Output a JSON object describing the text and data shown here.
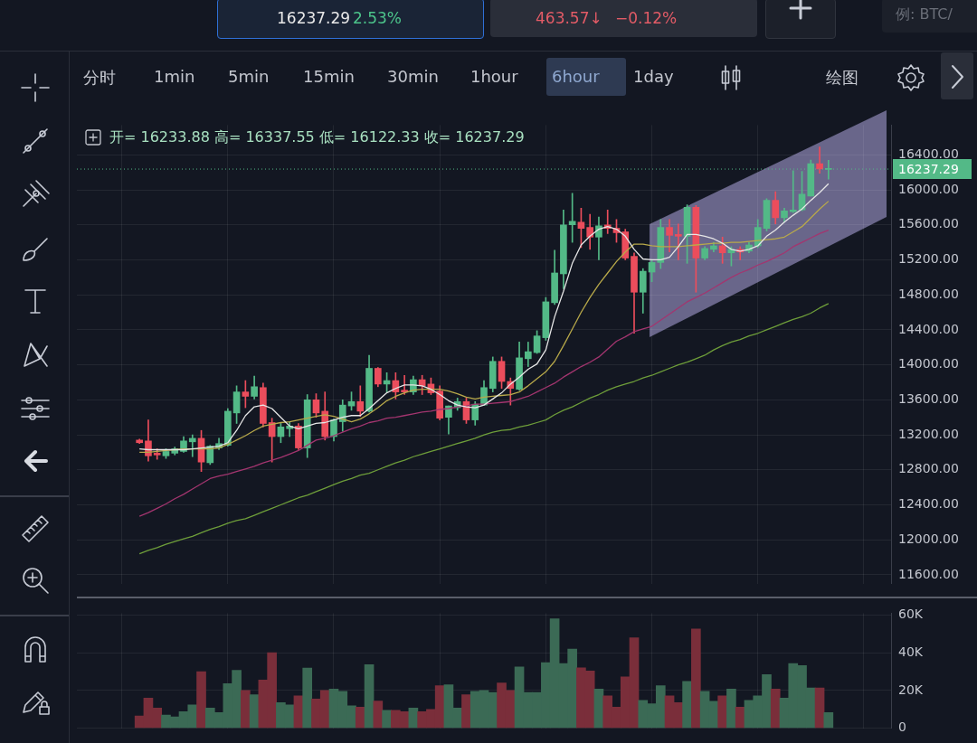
{
  "chart_data": [
    {
      "type": "other",
      "annotations": [
        "16237.29",
        "2.53%",
        "463.57↓",
        "−0.12%",
        "例: BTC/",
        "分时",
        "1min",
        "5min",
        "15min",
        "30min",
        "1hour",
        "6hour",
        "1day",
        "绘图"
      ]
    },
    {
      "type": "candlestick",
      "annotations": [
        "开= 16233.88 高= 16337.55 低= 16122.33 收= 16237.29"
      ],
      "categories": [
        null,
        null,
        null,
        null,
        null,
        null,
        null,
        null,
        null,
        null,
        null,
        null,
        null,
        null,
        null,
        null,
        null,
        null,
        null,
        null,
        null,
        null,
        null,
        null,
        null,
        null,
        null,
        null,
        null,
        null,
        null,
        null,
        null,
        null,
        null,
        null,
        null,
        null,
        null,
        null,
        null,
        null,
        null,
        null,
        null,
        null,
        null,
        null,
        null,
        null,
        null,
        null,
        null,
        null,
        null,
        null,
        null,
        null,
        null,
        null,
        null,
        null,
        null,
        null,
        null,
        null,
        null,
        null,
        null,
        null,
        null,
        null,
        null,
        null,
        null,
        null,
        null,
        null,
        null
      ],
      "ohlc": [
        [
          13140,
          13150,
          13100,
          13110
        ],
        [
          13130,
          13370,
          12900,
          12960
        ],
        [
          12990,
          13040,
          12920,
          12970
        ],
        [
          12960,
          13040,
          12930,
          13010
        ],
        [
          12990,
          13060,
          12970,
          13040
        ],
        [
          13010,
          13180,
          13000,
          13130
        ],
        [
          13120,
          13200,
          12950,
          13160
        ],
        [
          13160,
          13250,
          12780,
          12890
        ],
        [
          12880,
          13080,
          12860,
          13070
        ],
        [
          13050,
          13160,
          13030,
          13100
        ],
        [
          13080,
          13500,
          13070,
          13470
        ],
        [
          13450,
          13760,
          13330,
          13690
        ],
        [
          13690,
          13820,
          13510,
          13640
        ],
        [
          13640,
          13870,
          13610,
          13750
        ],
        [
          13740,
          13790,
          13290,
          13330
        ],
        [
          13340,
          13390,
          12890,
          13180
        ],
        [
          13180,
          13330,
          13110,
          13290
        ],
        [
          13270,
          13350,
          13180,
          13300
        ],
        [
          13300,
          13330,
          13030,
          13050
        ],
        [
          13050,
          13660,
          12940,
          13600
        ],
        [
          13600,
          13670,
          13400,
          13450
        ],
        [
          13470,
          13690,
          13140,
          13180
        ],
        [
          13180,
          13380,
          13130,
          13370
        ],
        [
          13350,
          13600,
          13240,
          13540
        ],
        [
          13530,
          13690,
          13480,
          13580
        ],
        [
          13580,
          13760,
          13410,
          13470
        ],
        [
          13470,
          14110,
          13460,
          13960
        ],
        [
          13960,
          13970,
          13750,
          13780
        ],
        [
          13780,
          13910,
          13690,
          13820
        ],
        [
          13820,
          13910,
          13610,
          13690
        ],
        [
          13710,
          13880,
          13660,
          13690
        ],
        [
          13690,
          13870,
          13660,
          13830
        ],
        [
          13830,
          13880,
          13660,
          13760
        ],
        [
          13780,
          13850,
          13660,
          13680
        ],
        [
          13700,
          13760,
          13370,
          13390
        ],
        [
          13400,
          13530,
          13210,
          13530
        ],
        [
          13510,
          13620,
          13480,
          13580
        ],
        [
          13580,
          13620,
          13330,
          13370
        ],
        [
          13370,
          13580,
          13310,
          13550
        ],
        [
          13540,
          13820,
          13540,
          13740
        ],
        [
          13730,
          14090,
          13690,
          14040
        ],
        [
          14040,
          14090,
          13730,
          13810
        ],
        [
          13810,
          13850,
          13540,
          13730
        ],
        [
          13720,
          14260,
          13710,
          14080
        ],
        [
          14070,
          14260,
          13980,
          14150
        ],
        [
          14140,
          14390,
          14130,
          14330
        ],
        [
          14310,
          14770,
          14280,
          14720
        ],
        [
          14710,
          15310,
          14690,
          15050
        ],
        [
          15040,
          15770,
          14870,
          15600
        ],
        [
          15600,
          15960,
          15400,
          15640
        ],
        [
          15630,
          15790,
          15340,
          15560
        ],
        [
          15570,
          15720,
          15320,
          15460
        ],
        [
          15460,
          15690,
          15200,
          15590
        ],
        [
          15600,
          15770,
          15500,
          15560
        ],
        [
          15560,
          15660,
          15400,
          15510
        ],
        [
          15520,
          15550,
          15200,
          15220
        ],
        [
          15240,
          15280,
          14360,
          14830
        ],
        [
          14830,
          15100,
          14590,
          15070
        ],
        [
          15060,
          15200,
          14950,
          15170
        ],
        [
          15170,
          15660,
          15100,
          15570
        ],
        [
          15570,
          15660,
          15290,
          15480
        ],
        [
          15490,
          15610,
          15200,
          15470
        ],
        [
          15470,
          15830,
          15160,
          15800
        ],
        [
          15800,
          15820,
          14830,
          15220
        ],
        [
          15220,
          15350,
          15200,
          15330
        ],
        [
          15320,
          15400,
          15290,
          15360
        ],
        [
          15360,
          15460,
          15160,
          15280
        ],
        [
          15280,
          15350,
          15130,
          15320
        ],
        [
          15320,
          15350,
          15200,
          15290
        ],
        [
          15300,
          15400,
          15280,
          15370
        ],
        [
          15360,
          15660,
          15340,
          15570
        ],
        [
          15560,
          15900,
          15530,
          15880
        ],
        [
          15880,
          15980,
          15610,
          15680
        ],
        [
          15680,
          15790,
          15630,
          15760
        ],
        [
          15750,
          16220,
          15740,
          15770
        ],
        [
          15770,
          16210,
          15760,
          15950
        ],
        [
          15930,
          16340,
          15930,
          16300
        ],
        [
          16300,
          16490,
          16190,
          16240
        ],
        [
          16233.88,
          16337.55,
          16122.33,
          16237.29
        ]
      ],
      "colors": [
        "#eb4d5c",
        "#eb4d5c",
        "#eb4d5c",
        "#53b987",
        "#53b987",
        "#53b987",
        "#53b987",
        "#eb4d5c",
        "#53b987",
        "#53b987",
        "#53b987",
        "#53b987",
        "#eb4d5c",
        "#53b987",
        "#eb4d5c",
        "#eb4d5c",
        "#53b987",
        "#53b987",
        "#eb4d5c",
        "#53b987",
        "#eb4d5c",
        "#eb4d5c",
        "#53b987",
        "#53b987",
        "#53b987",
        "#eb4d5c",
        "#53b987",
        "#eb4d5c",
        "#53b987",
        "#eb4d5c",
        "#eb4d5c",
        "#53b987",
        "#eb4d5c",
        "#eb4d5c",
        "#eb4d5c",
        "#53b987",
        "#53b987",
        "#eb4d5c",
        "#53b987",
        "#53b987",
        "#53b987",
        "#eb4d5c",
        "#eb4d5c",
        "#53b987",
        "#53b987",
        "#53b987",
        "#53b987",
        "#53b987",
        "#53b987",
        "#53b987",
        "#eb4d5c",
        "#eb4d5c",
        "#53b987",
        "#eb4d5c",
        "#eb4d5c",
        "#eb4d5c",
        "#eb4d5c",
        "#53b987",
        "#53b987",
        "#53b987",
        "#eb4d5c",
        "#eb4d5c",
        "#53b987",
        "#eb4d5c",
        "#53b987",
        "#53b987",
        "#eb4d5c",
        "#53b987",
        "#eb4d5c",
        "#53b987",
        "#53b987",
        "#53b987",
        "#eb4d5c",
        "#53b987",
        "#53b987",
        "#53b987",
        "#53b987",
        "#eb4d5c",
        "#53b987"
      ],
      "series": [
        {
          "type": "line",
          "color": "#e6e6e6",
          "values": [
            13040,
            13030,
            13030,
            13030,
            13030,
            13030,
            13040,
            13050,
            13060,
            13070,
            13110,
            13250,
            13420,
            13520,
            13540,
            13500,
            13400,
            13300,
            13270,
            13300,
            13330,
            13340,
            13370,
            13400,
            13420,
            13420,
            13500,
            13590,
            13680,
            13730,
            13770,
            13770,
            13760,
            13720,
            13660,
            13590,
            13540,
            13520,
            13510,
            13540,
            13610,
            13680,
            13780,
            13860,
            13950,
            14010,
            14170,
            14550,
            14840,
            15160,
            15370,
            15470,
            15550,
            15580,
            15550,
            15470,
            15320,
            15210,
            15200,
            15200,
            15230,
            15350,
            15490,
            15490,
            15470,
            15440,
            15390,
            15320,
            15300,
            15320,
            15360,
            15470,
            15540,
            15630,
            15710,
            15780,
            15880,
            15970,
            16070
          ]
        },
        {
          "type": "line",
          "color": "#b8a94a",
          "values": [
            13000,
            13000,
            13010,
            13020,
            13030,
            13040,
            13040,
            13040,
            13040,
            13050,
            13090,
            13140,
            13190,
            13250,
            13300,
            13320,
            13340,
            13350,
            13370,
            13390,
            13410,
            13430,
            13410,
            13380,
            13350,
            13380,
            13440,
            13510,
            13590,
            13640,
            13680,
            13710,
            13720,
            13720,
            13720,
            13700,
            13670,
            13630,
            13610,
            13630,
            13640,
            13650,
            13660,
            13690,
            13760,
            13840,
            13920,
            14040,
            14220,
            14410,
            14600,
            14770,
            14920,
            15050,
            15180,
            15290,
            15380,
            15380,
            15360,
            15350,
            15350,
            15350,
            15360,
            15370,
            15380,
            15390,
            15390,
            15400,
            15400,
            15410,
            15420,
            15430,
            15440,
            15460,
            15520,
            15580,
            15680,
            15780,
            15870
          ]
        },
        {
          "type": "line",
          "color": "#a3356f",
          "values": [
            12270,
            12310,
            12360,
            12410,
            12470,
            12520,
            12580,
            12640,
            12700,
            12730,
            12750,
            12780,
            12810,
            12840,
            12880,
            12910,
            12940,
            12980,
            13020,
            13080,
            13140,
            13160,
            13190,
            13230,
            13270,
            13300,
            13340,
            13360,
            13390,
            13400,
            13420,
            13440,
            13460,
            13470,
            13490,
            13500,
            13520,
            13530,
            13550,
            13550,
            13560,
            13570,
            13580,
            13610,
            13640,
            13690,
            13740,
            13790,
            13860,
            13920,
            13980,
            14030,
            14090,
            14180,
            14270,
            14320,
            14380,
            14410,
            14440,
            14510,
            14580,
            14650,
            14720,
            14770,
            14820,
            14880,
            14940,
            15000,
            15050,
            15090,
            15140,
            15180,
            15230,
            15280,
            15350,
            15400,
            15450,
            15500,
            15540
          ]
        },
        {
          "type": "line",
          "color": "#6e9e3a",
          "values": [
            11840,
            11880,
            11910,
            11950,
            11980,
            12010,
            12040,
            12080,
            12120,
            12150,
            12190,
            12220,
            12240,
            12280,
            12320,
            12360,
            12400,
            12440,
            12480,
            12510,
            12550,
            12590,
            12630,
            12670,
            12700,
            12740,
            12760,
            12800,
            12840,
            12880,
            12910,
            12950,
            12980,
            13010,
            13040,
            13070,
            13100,
            13130,
            13160,
            13200,
            13230,
            13250,
            13260,
            13290,
            13310,
            13340,
            13370,
            13430,
            13480,
            13520,
            13570,
            13620,
            13660,
            13710,
            13750,
            13780,
            13810,
            13850,
            13880,
            13920,
            13960,
            14000,
            14030,
            14070,
            14110,
            14170,
            14220,
            14260,
            14290,
            14330,
            14360,
            14400,
            14440,
            14480,
            14520,
            14550,
            14590,
            14650,
            14700
          ]
        }
      ],
      "ylim": [
        11500,
        16740
      ],
      "yticks": [
        {
          "value": 11600,
          "label": "11600.00"
        },
        {
          "value": 12000,
          "label": "12000.00"
        },
        {
          "value": 12400,
          "label": "12400.00"
        },
        {
          "value": 12800,
          "label": "12800.00"
        },
        {
          "value": 13200,
          "label": "13200.00"
        },
        {
          "value": 13600,
          "label": "13600.00"
        },
        {
          "value": 14000,
          "label": "14000.00"
        },
        {
          "value": 14400,
          "label": "14400.00"
        },
        {
          "value": 14800,
          "label": "14800.00"
        },
        {
          "value": 15200,
          "label": "15200.00"
        },
        {
          "value": 15600,
          "label": "15600.00"
        },
        {
          "value": 16000,
          "label": "16000.00"
        },
        {
          "value": 16400,
          "label": "16400.00"
        }
      ],
      "ref_lines": [
        {
          "axis": "y",
          "value": 16237.29,
          "label": "16237.29",
          "color": "#53b987",
          "line_style": "dotted"
        }
      ],
      "grid": true,
      "tick_labels": "y"
    },
    {
      "type": "bar",
      "categories": [
        null,
        null,
        null,
        null,
        null,
        null,
        null,
        null,
        null,
        null,
        null,
        null,
        null,
        null,
        null,
        null,
        null,
        null,
        null,
        null,
        null,
        null,
        null,
        null,
        null,
        null,
        null,
        null,
        null,
        null,
        null,
        null,
        null,
        null,
        null,
        null,
        null,
        null,
        null,
        null,
        null,
        null,
        null,
        null,
        null,
        null,
        null,
        null,
        null,
        null,
        null,
        null,
        null,
        null,
        null,
        null,
        null,
        null,
        null,
        null,
        null,
        null,
        null,
        null,
        null,
        null,
        null,
        null,
        null,
        null,
        null,
        null,
        null,
        null,
        null,
        null,
        null,
        null,
        null
      ],
      "values": [
        6500,
        16000,
        10700,
        7000,
        6000,
        8800,
        12400,
        30000,
        10700,
        8300,
        23600,
        30700,
        20000,
        17700,
        25600,
        40000,
        13500,
        12400,
        17200,
        31900,
        15500,
        20000,
        20700,
        19600,
        11900,
        11200,
        33700,
        14400,
        9500,
        9500,
        8800,
        10700,
        8800,
        10000,
        22500,
        23000,
        10700,
        17700,
        19600,
        20000,
        19000,
        24000,
        20000,
        32500,
        19000,
        19000,
        34800,
        58000,
        34300,
        42000,
        32000,
        30300,
        20700,
        17200,
        11200,
        27200,
        48000,
        14800,
        12900,
        22500,
        17200,
        13600,
        24800,
        52700,
        19600,
        14300,
        17200,
        20700,
        11200,
        14800,
        17200,
        28400,
        20700,
        16000,
        34300,
        33200,
        21300,
        21300,
        8300
      ],
      "colors": [
        "#7a2e3a",
        "#7a2e3a",
        "#7a2e3a",
        "#3b6a55",
        "#3b6a55",
        "#3b6a55",
        "#3b6a55",
        "#7a2e3a",
        "#3b6a55",
        "#3b6a55",
        "#3b6a55",
        "#3b6a55",
        "#7a2e3a",
        "#3b6a55",
        "#7a2e3a",
        "#7a2e3a",
        "#3b6a55",
        "#3b6a55",
        "#7a2e3a",
        "#3b6a55",
        "#7a2e3a",
        "#7a2e3a",
        "#3b6a55",
        "#3b6a55",
        "#3b6a55",
        "#7a2e3a",
        "#3b6a55",
        "#7a2e3a",
        "#3b6a55",
        "#7a2e3a",
        "#7a2e3a",
        "#3b6a55",
        "#7a2e3a",
        "#7a2e3a",
        "#7a2e3a",
        "#3b6a55",
        "#3b6a55",
        "#7a2e3a",
        "#3b6a55",
        "#3b6a55",
        "#3b6a55",
        "#7a2e3a",
        "#7a2e3a",
        "#3b6a55",
        "#3b6a55",
        "#3b6a55",
        "#3b6a55",
        "#3b6a55",
        "#3b6a55",
        "#3b6a55",
        "#7a2e3a",
        "#7a2e3a",
        "#3b6a55",
        "#7a2e3a",
        "#7a2e3a",
        "#7a2e3a",
        "#7a2e3a",
        "#3b6a55",
        "#3b6a55",
        "#3b6a55",
        "#7a2e3a",
        "#7a2e3a",
        "#3b6a55",
        "#7a2e3a",
        "#3b6a55",
        "#3b6a55",
        "#7a2e3a",
        "#3b6a55",
        "#7a2e3a",
        "#3b6a55",
        "#3b6a55",
        "#3b6a55",
        "#7a2e3a",
        "#3b6a55",
        "#3b6a55",
        "#3b6a55",
        "#3b6a55",
        "#7a2e3a",
        "#3b6a55"
      ],
      "ylim": [
        0,
        61000
      ],
      "yticks": [
        {
          "value": 0,
          "label": "0"
        },
        {
          "value": 20000,
          "label": "20K"
        },
        {
          "value": 40000,
          "label": "40K"
        },
        {
          "value": 60000,
          "label": "60K"
        }
      ],
      "grid": true,
      "tick_labels": "y"
    }
  ]
}
